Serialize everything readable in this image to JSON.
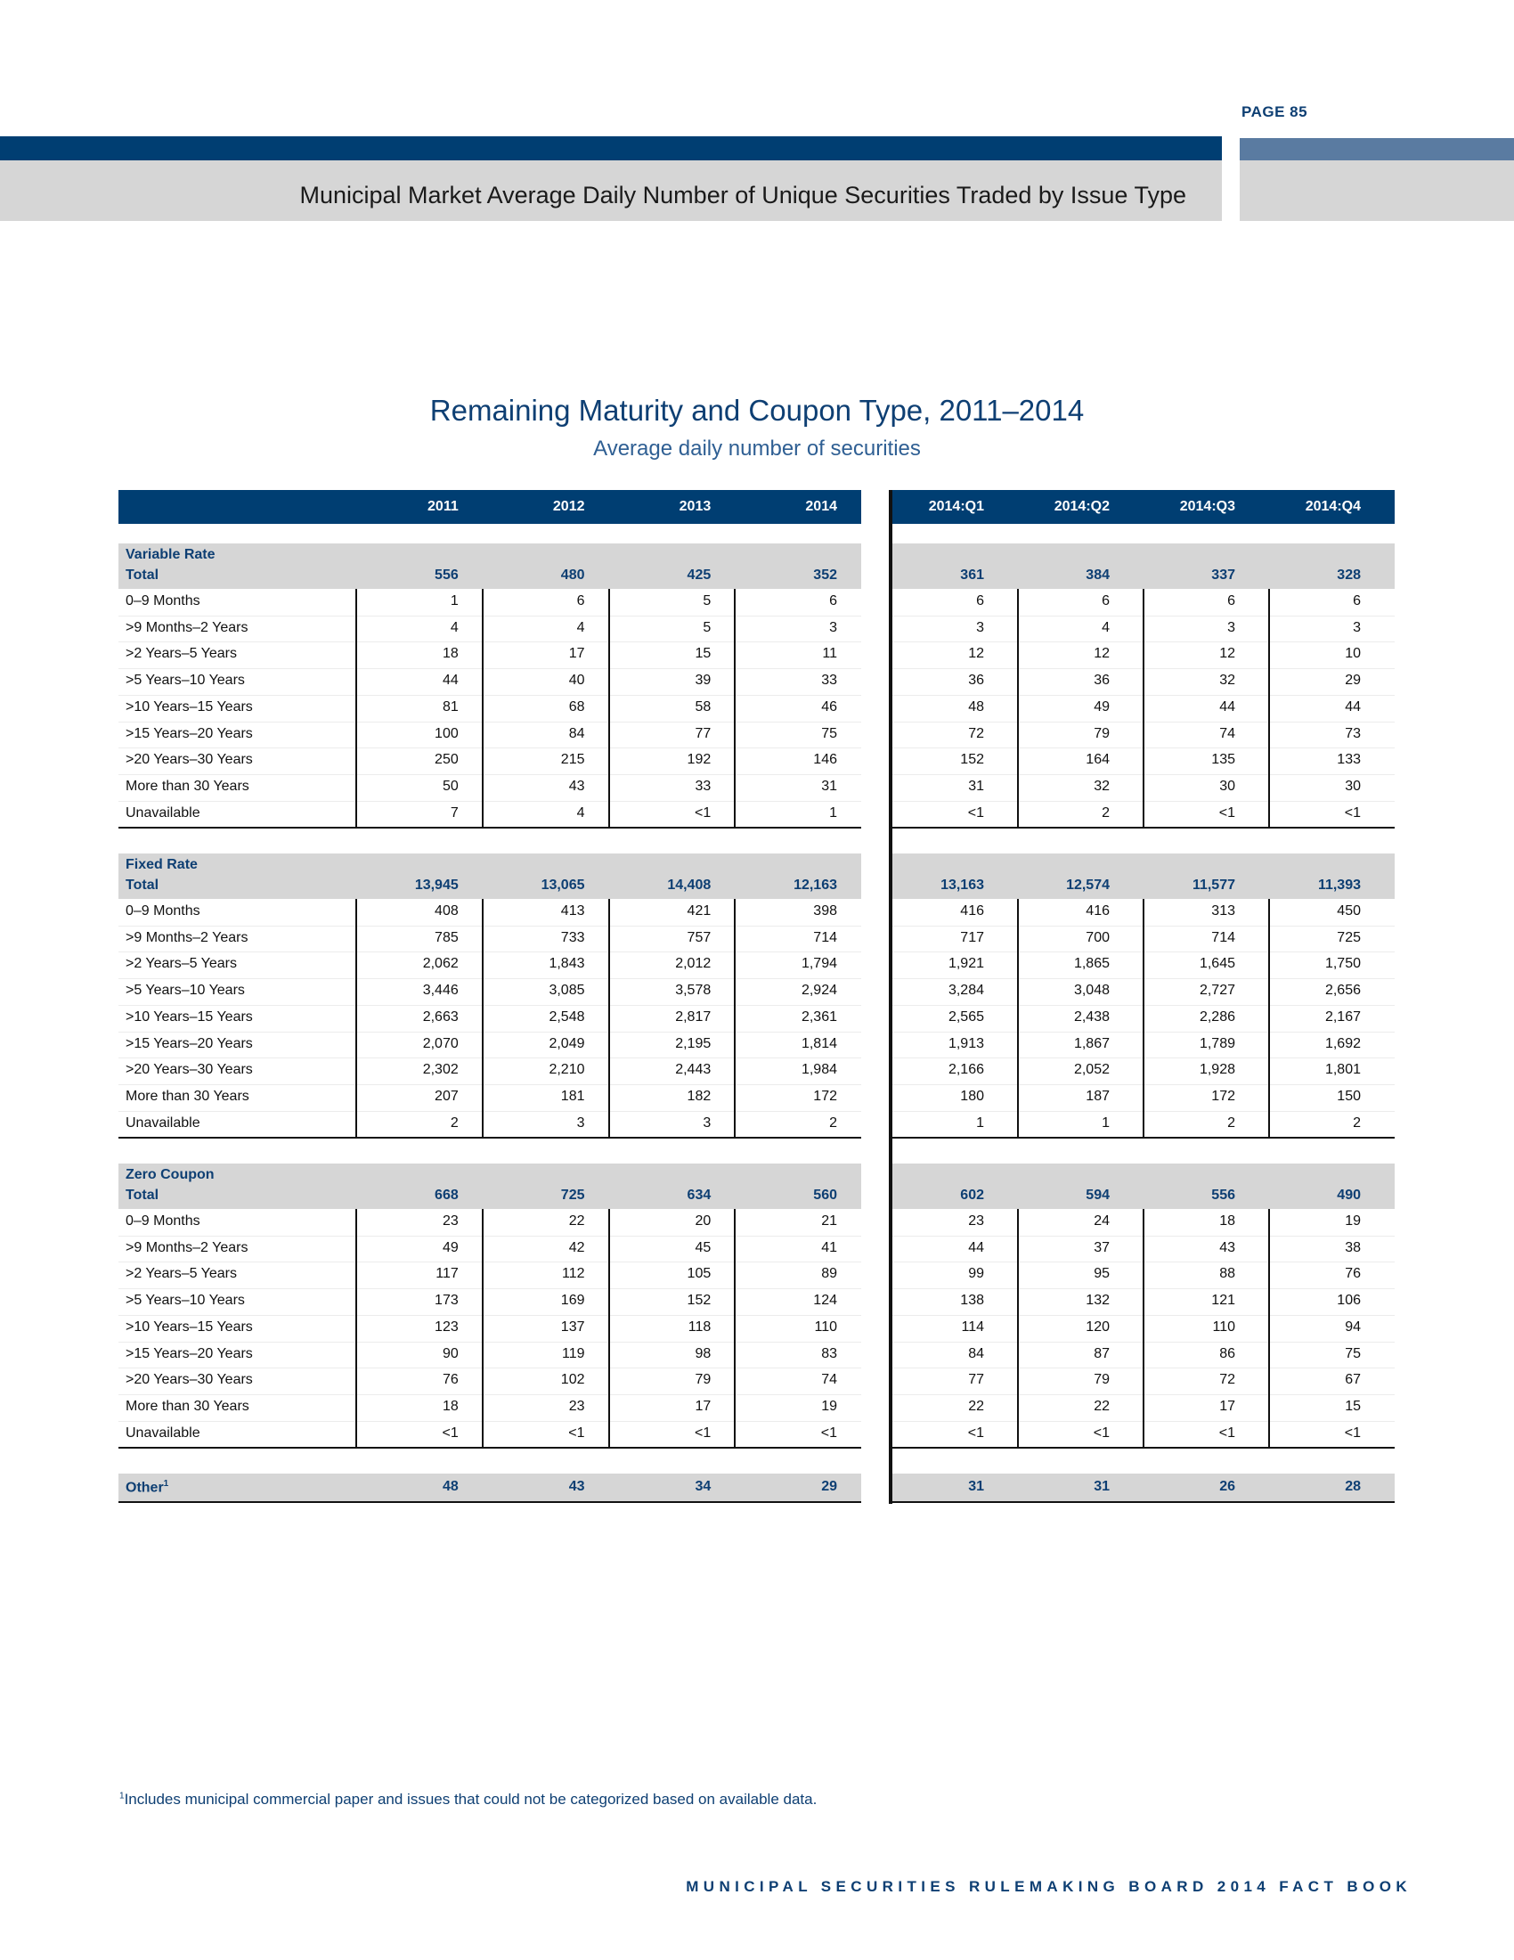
{
  "page_number": "PAGE 85",
  "page_title": "Municipal Market Average Daily Number of Unique Securities Traded by Issue Type",
  "table_title": "Remaining Maturity and Coupon Type, 2011–2014",
  "table_subtitle": "Average daily number of securities",
  "colors": {
    "navy": "#003e72",
    "slate": "#5a7ba1",
    "band_gray": "#d6d6d6",
    "text_blue": "#0e3f73"
  },
  "annual_columns": [
    "2011",
    "2012",
    "2013",
    "2014"
  ],
  "quarterly_columns": [
    "2014:Q1",
    "2014:Q2",
    "2014:Q3",
    "2014:Q4"
  ],
  "total_label": "Total",
  "row_labels": [
    "0–9 Months",
    ">9 Months–2 Years",
    ">2 Years–5 Years",
    ">5 Years–10 Years",
    ">10 Years–15 Years",
    ">15 Years–20 Years",
    ">20 Years–30 Years",
    "More than 30 Years",
    "Unavailable"
  ],
  "sections": [
    {
      "name": "Variable Rate",
      "total_annual": [
        "556",
        "480",
        "425",
        "352"
      ],
      "total_quarterly": [
        "361",
        "384",
        "337",
        "328"
      ],
      "rows_annual": [
        [
          "1",
          "6",
          "5",
          "6"
        ],
        [
          "4",
          "4",
          "5",
          "3"
        ],
        [
          "18",
          "17",
          "15",
          "11"
        ],
        [
          "44",
          "40",
          "39",
          "33"
        ],
        [
          "81",
          "68",
          "58",
          "46"
        ],
        [
          "100",
          "84",
          "77",
          "75"
        ],
        [
          "250",
          "215",
          "192",
          "146"
        ],
        [
          "50",
          "43",
          "33",
          "31"
        ],
        [
          "7",
          "4",
          "<1",
          "1"
        ]
      ],
      "rows_quarterly": [
        [
          "6",
          "6",
          "6",
          "6"
        ],
        [
          "3",
          "4",
          "3",
          "3"
        ],
        [
          "12",
          "12",
          "12",
          "10"
        ],
        [
          "36",
          "36",
          "32",
          "29"
        ],
        [
          "48",
          "49",
          "44",
          "44"
        ],
        [
          "72",
          "79",
          "74",
          "73"
        ],
        [
          "152",
          "164",
          "135",
          "133"
        ],
        [
          "31",
          "32",
          "30",
          "30"
        ],
        [
          "<1",
          "2",
          "<1",
          "<1"
        ]
      ]
    },
    {
      "name": "Fixed Rate",
      "total_annual": [
        "13,945",
        "13,065",
        "14,408",
        "12,163"
      ],
      "total_quarterly": [
        "13,163",
        "12,574",
        "11,577",
        "11,393"
      ],
      "rows_annual": [
        [
          "408",
          "413",
          "421",
          "398"
        ],
        [
          "785",
          "733",
          "757",
          "714"
        ],
        [
          "2,062",
          "1,843",
          "2,012",
          "1,794"
        ],
        [
          "3,446",
          "3,085",
          "3,578",
          "2,924"
        ],
        [
          "2,663",
          "2,548",
          "2,817",
          "2,361"
        ],
        [
          "2,070",
          "2,049",
          "2,195",
          "1,814"
        ],
        [
          "2,302",
          "2,210",
          "2,443",
          "1,984"
        ],
        [
          "207",
          "181",
          "182",
          "172"
        ],
        [
          "2",
          "3",
          "3",
          "2"
        ]
      ],
      "rows_quarterly": [
        [
          "416",
          "416",
          "313",
          "450"
        ],
        [
          "717",
          "700",
          "714",
          "725"
        ],
        [
          "1,921",
          "1,865",
          "1,645",
          "1,750"
        ],
        [
          "3,284",
          "3,048",
          "2,727",
          "2,656"
        ],
        [
          "2,565",
          "2,438",
          "2,286",
          "2,167"
        ],
        [
          "1,913",
          "1,867",
          "1,789",
          "1,692"
        ],
        [
          "2,166",
          "2,052",
          "1,928",
          "1,801"
        ],
        [
          "180",
          "187",
          "172",
          "150"
        ],
        [
          "1",
          "1",
          "2",
          "2"
        ]
      ]
    },
    {
      "name": "Zero Coupon",
      "total_annual": [
        "668",
        "725",
        "634",
        "560"
      ],
      "total_quarterly": [
        "602",
        "594",
        "556",
        "490"
      ],
      "rows_annual": [
        [
          "23",
          "22",
          "20",
          "21"
        ],
        [
          "49",
          "42",
          "45",
          "41"
        ],
        [
          "117",
          "112",
          "105",
          "89"
        ],
        [
          "173",
          "169",
          "152",
          "124"
        ],
        [
          "123",
          "137",
          "118",
          "110"
        ],
        [
          "90",
          "119",
          "98",
          "83"
        ],
        [
          "76",
          "102",
          "79",
          "74"
        ],
        [
          "18",
          "23",
          "17",
          "19"
        ],
        [
          "<1",
          "<1",
          "<1",
          "<1"
        ]
      ],
      "rows_quarterly": [
        [
          "23",
          "24",
          "18",
          "19"
        ],
        [
          "44",
          "37",
          "43",
          "38"
        ],
        [
          "99",
          "95",
          "88",
          "76"
        ],
        [
          "138",
          "132",
          "121",
          "106"
        ],
        [
          "114",
          "120",
          "110",
          "94"
        ],
        [
          "84",
          "87",
          "86",
          "75"
        ],
        [
          "77",
          "79",
          "72",
          "67"
        ],
        [
          "22",
          "22",
          "17",
          "15"
        ],
        [
          "<1",
          "<1",
          "<1",
          "<1"
        ]
      ]
    }
  ],
  "other": {
    "label": "Other",
    "footnote_marker": "1",
    "annual": [
      "48",
      "43",
      "34",
      "29"
    ],
    "quarterly": [
      "31",
      "31",
      "26",
      "28"
    ]
  },
  "footnote": {
    "marker": "1",
    "text": "Includes municipal commercial paper and issues that could not be categorized based on available data."
  },
  "footer": "MUNICIPAL SECURITIES RULEMAKING BOARD 2014 FACT BOOK"
}
